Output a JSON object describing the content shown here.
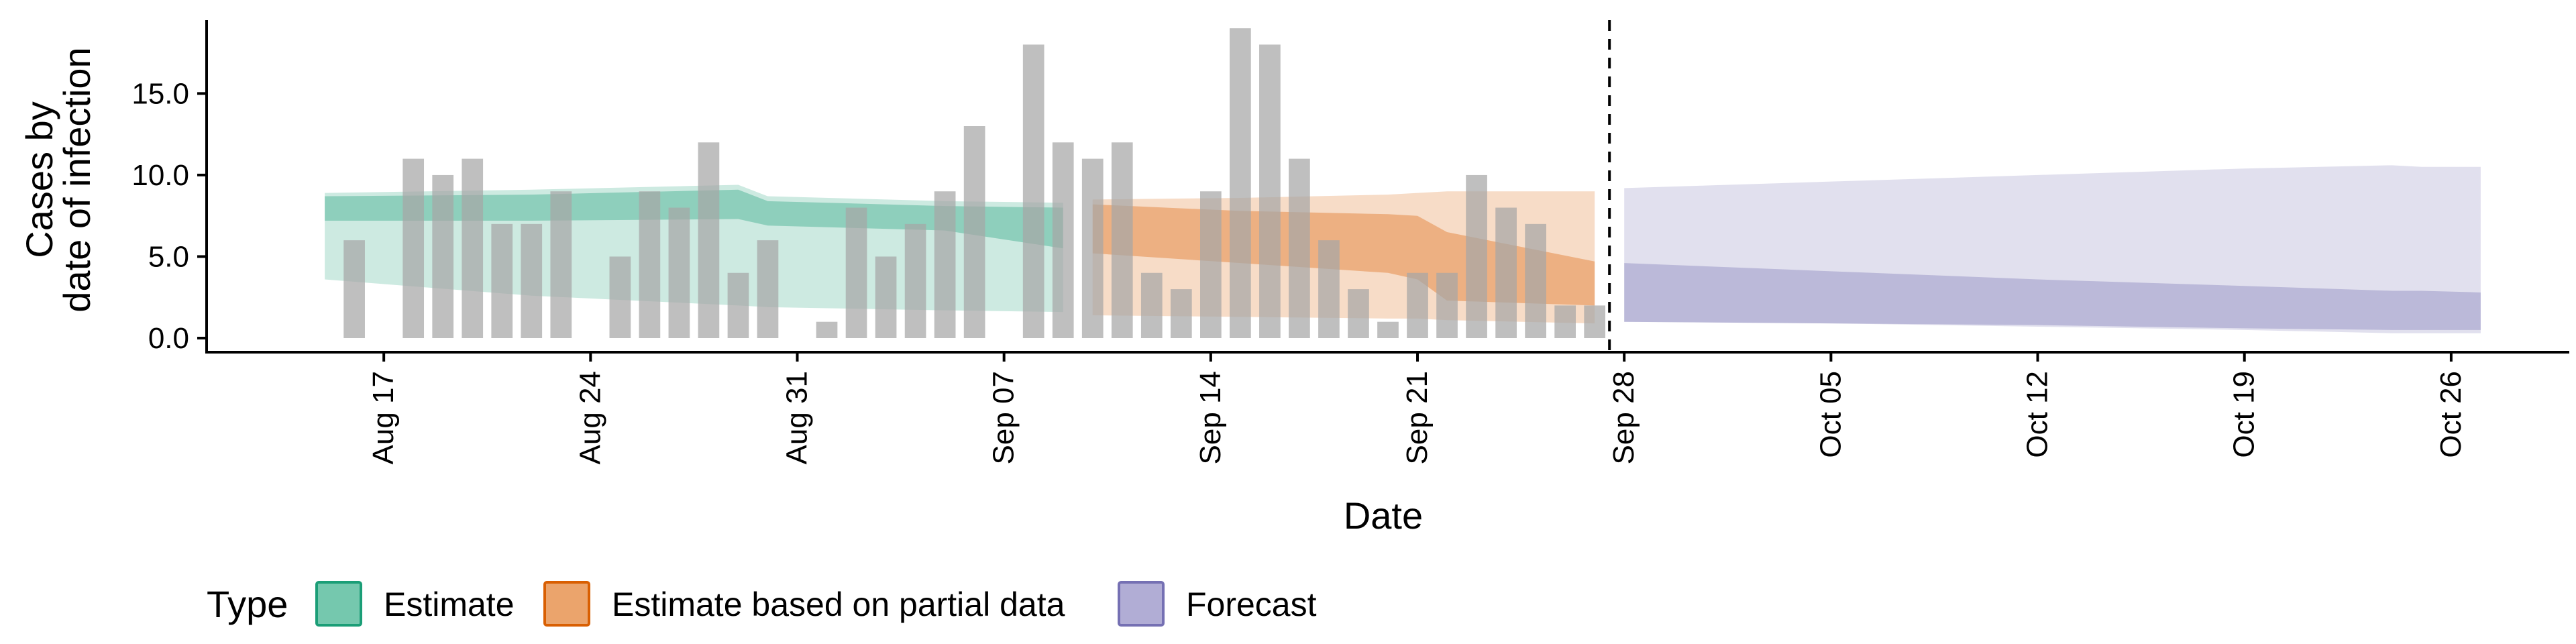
{
  "chart_data": {
    "type": "bar",
    "xlabel": "Date",
    "ylabel": [
      "Cases by",
      "date of infection"
    ],
    "ylim": [
      0,
      19.5
    ],
    "xlim": [
      "2020-08-11",
      "2020-10-30"
    ],
    "y_ticks": [
      "0.0",
      "5.0",
      "10.0",
      "15.0"
    ],
    "x_ticks": [
      {
        "date": "2020-08-17",
        "label": "Aug 17"
      },
      {
        "date": "2020-08-24",
        "label": "Aug 24"
      },
      {
        "date": "2020-08-31",
        "label": "Aug 31"
      },
      {
        "date": "2020-09-07",
        "label": "Sep 07"
      },
      {
        "date": "2020-09-14",
        "label": "Sep 14"
      },
      {
        "date": "2020-09-21",
        "label": "Sep 21"
      },
      {
        "date": "2020-09-28",
        "label": "Sep 28"
      },
      {
        "date": "2020-10-05",
        "label": "Oct 05"
      },
      {
        "date": "2020-10-12",
        "label": "Oct 12"
      },
      {
        "date": "2020-10-19",
        "label": "Oct 19"
      },
      {
        "date": "2020-10-26",
        "label": "Oct 26"
      }
    ],
    "forecast_start": "2020-09-27",
    "bars": {
      "dates": [
        "2020-08-16",
        "2020-08-18",
        "2020-08-19",
        "2020-08-20",
        "2020-08-21",
        "2020-08-22",
        "2020-08-23",
        "2020-08-25",
        "2020-08-26",
        "2020-08-27",
        "2020-08-28",
        "2020-08-29",
        "2020-08-30",
        "2020-09-01",
        "2020-09-02",
        "2020-09-03",
        "2020-09-04",
        "2020-09-05",
        "2020-09-06",
        "2020-09-08",
        "2020-09-09",
        "2020-09-10",
        "2020-09-11",
        "2020-09-12",
        "2020-09-13",
        "2020-09-14",
        "2020-09-15",
        "2020-09-16",
        "2020-09-17",
        "2020-09-18",
        "2020-09-19",
        "2020-09-20",
        "2020-09-21",
        "2020-09-22",
        "2020-09-23",
        "2020-09-24",
        "2020-09-25",
        "2020-09-26",
        "2020-09-27"
      ],
      "values": [
        6,
        11,
        10,
        11,
        7,
        7,
        9,
        5,
        9,
        8,
        12,
        4,
        6,
        1,
        8,
        5,
        7,
        9,
        13,
        18,
        12,
        11,
        12,
        4,
        3,
        9,
        19,
        18,
        11,
        6,
        3,
        1,
        4,
        4,
        10,
        8,
        7,
        2,
        2
      ],
      "color": "#a6a6a6"
    },
    "legend": {
      "title": "Type",
      "position": "bottom",
      "items": [
        {
          "label": "Estimate",
          "fill": "#66c2a5",
          "stroke": "#1b9e77"
        },
        {
          "label": "Estimate based on partial data",
          "fill": "#e99a5c",
          "stroke": "#d95f02"
        },
        {
          "label": "Forecast",
          "fill": "#a9a4d0",
          "stroke": "#7570b3"
        }
      ]
    },
    "series": [
      {
        "type": "Estimate",
        "color": "#1b9e77",
        "x": [
          "2020-08-15",
          "2020-08-22",
          "2020-08-29",
          "2020-08-30",
          "2020-09-05",
          "2020-09-09"
        ],
        "outer_upper": [
          8.9,
          9.1,
          9.4,
          8.7,
          8.4,
          8.3
        ],
        "outer_lower": [
          3.6,
          2.6,
          2.0,
          1.9,
          1.7,
          1.6
        ],
        "inner_upper": [
          8.7,
          8.8,
          9.1,
          8.4,
          8.1,
          8.0
        ],
        "inner_lower": [
          7.2,
          7.2,
          7.3,
          6.9,
          6.6,
          5.5
        ]
      },
      {
        "type": "Estimate based on partial data",
        "color": "#d95f02",
        "x": [
          "2020-09-10",
          "2020-09-15",
          "2020-09-20",
          "2020-09-21",
          "2020-09-22",
          "2020-09-27"
        ],
        "outer_upper": [
          8.5,
          8.6,
          8.8,
          8.9,
          9.0,
          9.0
        ],
        "outer_lower": [
          1.4,
          1.3,
          1.2,
          1.2,
          1.1,
          0.9
        ],
        "inner_upper": [
          8.2,
          7.8,
          7.6,
          7.5,
          6.5,
          4.7
        ],
        "inner_lower": [
          5.2,
          4.6,
          4.0,
          3.6,
          2.3,
          2.0
        ]
      },
      {
        "type": "Forecast",
        "color": "#7570b3",
        "x": [
          "2020-09-28",
          "2020-10-05",
          "2020-10-12",
          "2020-10-19",
          "2020-10-24",
          "2020-10-25",
          "2020-10-27"
        ],
        "outer_upper": [
          9.2,
          9.6,
          10.0,
          10.4,
          10.6,
          10.5,
          10.5
        ],
        "outer_lower": [
          1.0,
          0.9,
          0.7,
          0.5,
          0.3,
          0.3,
          0.3
        ],
        "inner_upper": [
          4.6,
          4.1,
          3.6,
          3.2,
          2.9,
          2.9,
          2.8
        ],
        "inner_lower": [
          1.0,
          0.9,
          0.8,
          0.6,
          0.5,
          0.5,
          0.5
        ]
      }
    ]
  }
}
